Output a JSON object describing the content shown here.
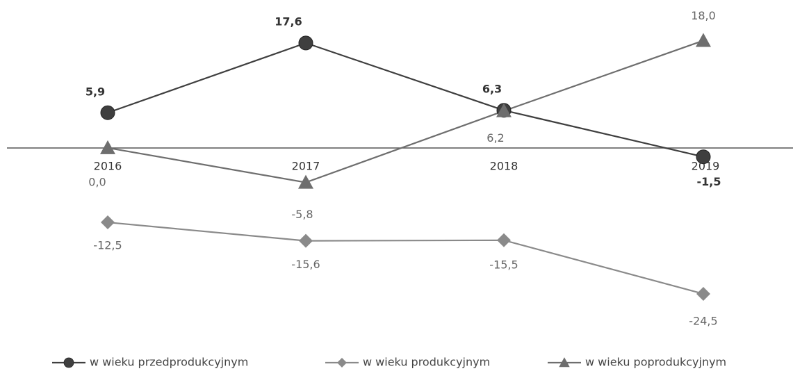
{
  "chart_data": {
    "type": "line",
    "categories": [
      "2016",
      "2017",
      "2018",
      "2019"
    ],
    "series": [
      {
        "name": "w wieku przedprodukcyjnym",
        "color": "#3f3f3f",
        "marker": "circle",
        "values": [
          5.9,
          17.6,
          6.3,
          -1.5
        ],
        "value_labels": [
          "5,9",
          "17,6",
          "6,3",
          "-1,5"
        ]
      },
      {
        "name": "w wieku produkcyjnym",
        "color": "#8a8a8a",
        "marker": "diamond",
        "values": [
          -12.5,
          -15.6,
          -15.5,
          -24.5
        ],
        "value_labels": [
          "-12,5",
          "-15,6",
          "-15,5",
          "-24,5"
        ]
      },
      {
        "name": "w wieku poprodukcyjnym",
        "color": "#6e6e6e",
        "marker": "triangle",
        "values": [
          0.0,
          -5.8,
          6.2,
          18.0
        ],
        "value_labels": [
          "0,0",
          "-5,8",
          "6,2",
          "18,0"
        ]
      }
    ],
    "ylim": [
      -28,
      24
    ],
    "legend": "bottom"
  }
}
